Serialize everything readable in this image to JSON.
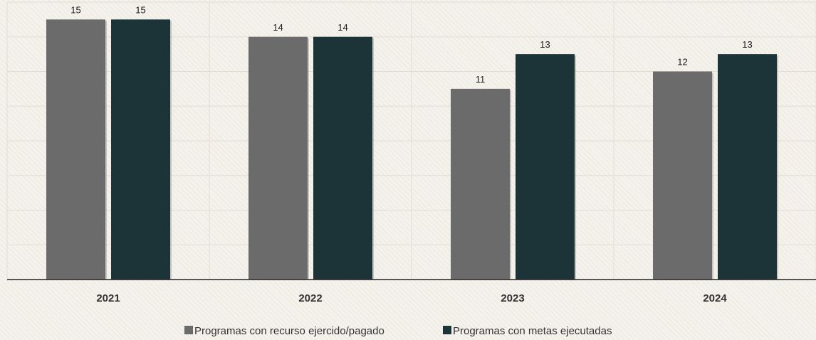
{
  "chart_data": {
    "type": "bar",
    "categories": [
      "2021",
      "2022",
      "2023",
      "2024"
    ],
    "series": [
      {
        "name": "Programas con recurso ejercido/pagado",
        "values": [
          15,
          14,
          11,
          12
        ],
        "color": "#6b6b6b"
      },
      {
        "name": "Programas con metas ejecutadas",
        "values": [
          15,
          14,
          13,
          13
        ],
        "color": "#1c3437"
      }
    ],
    "ylim": [
      0,
      16
    ],
    "grid": true,
    "legend_position": "bottom-center",
    "data_labels": true
  }
}
